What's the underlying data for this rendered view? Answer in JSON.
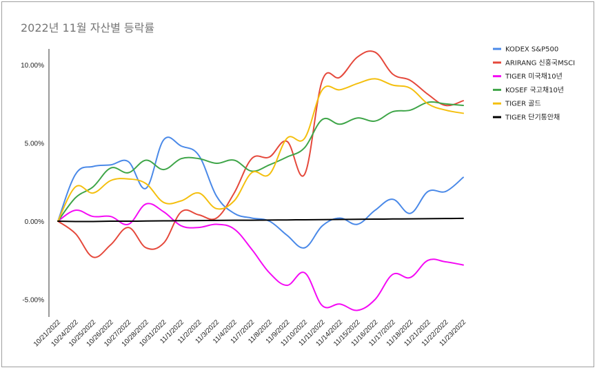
{
  "chart_data": {
    "type": "line",
    "title": "2022년 11월 자산별 등락률",
    "xlabel": "",
    "ylabel": "",
    "ylim": [
      -6.0,
      11.0
    ],
    "y_ticks": [
      "10.00%",
      "5.00%",
      "0.00%",
      "-5.00%"
    ],
    "y_tick_values": [
      10,
      5,
      0,
      -5
    ],
    "legend_position": "right",
    "grid": false,
    "categories": [
      "10/21/2022",
      "10/24/2022",
      "10/25/2022",
      "10/26/2022",
      "10/27/2022",
      "10/28/2022",
      "10/31/2022",
      "11/1/2022",
      "11/2/2022",
      "11/3/2022",
      "11/4/2022",
      "11/7/2022",
      "11/8/2022",
      "11/9/2022",
      "11/10/2022",
      "11/11/2022",
      "11/14/2022",
      "11/15/2022",
      "11/16/2022",
      "11/17/2022",
      "11/18/2022",
      "11/21/2022",
      "11/22/2022",
      "11/23/2022"
    ],
    "series": [
      {
        "name": "KODEX S&P500",
        "color": "#4a89e8",
        "values": [
          0.0,
          3.0,
          3.5,
          3.6,
          3.8,
          2.1,
          5.2,
          4.8,
          4.2,
          1.6,
          0.5,
          0.2,
          0.0,
          -0.9,
          -1.7,
          -0.3,
          0.2,
          -0.2,
          0.7,
          1.4,
          0.5,
          1.9,
          1.9,
          2.8
        ]
      },
      {
        "name": "ARIRANG 신흥국MSCI",
        "color": "#e5483b",
        "values": [
          0.0,
          -0.8,
          -2.3,
          -1.5,
          -0.4,
          -1.7,
          -1.4,
          0.6,
          0.4,
          0.2,
          1.8,
          4.0,
          4.1,
          5.1,
          3.0,
          9.0,
          9.2,
          10.5,
          10.8,
          9.4,
          9.0,
          8.1,
          7.4,
          7.7
        ]
      },
      {
        "name": "TIGER 미국채10년",
        "color": "#f40af4",
        "values": [
          0.0,
          0.7,
          0.3,
          0.3,
          -0.2,
          1.1,
          0.6,
          -0.3,
          -0.4,
          -0.2,
          -0.5,
          -1.8,
          -3.3,
          -4.1,
          -3.3,
          -5.4,
          -5.3,
          -5.7,
          -5.0,
          -3.4,
          -3.6,
          -2.5,
          -2.6,
          -2.8
        ]
      },
      {
        "name": "KOSEF 국고채10년",
        "color": "#3ea548",
        "values": [
          0.0,
          1.5,
          2.2,
          3.4,
          3.1,
          3.9,
          3.3,
          4.0,
          4.0,
          3.7,
          3.9,
          3.2,
          3.6,
          4.1,
          4.7,
          6.5,
          6.2,
          6.6,
          6.4,
          7.0,
          7.1,
          7.6,
          7.5,
          7.4
        ]
      },
      {
        "name": "TIGER 골드",
        "color": "#f4bf0e",
        "values": [
          0.0,
          2.2,
          1.8,
          2.6,
          2.7,
          2.4,
          1.2,
          1.3,
          1.8,
          0.8,
          1.3,
          3.1,
          3.0,
          5.3,
          5.3,
          8.4,
          8.4,
          8.8,
          9.1,
          8.7,
          8.5,
          7.5,
          7.1,
          6.9
        ]
      },
      {
        "name": "TIGER 단기통안채",
        "color": "#000000",
        "values": [
          0.0,
          -0.02,
          -0.02,
          0.0,
          0.0,
          0.01,
          0.02,
          0.03,
          0.04,
          0.05,
          0.06,
          0.06,
          0.07,
          0.08,
          0.09,
          0.1,
          0.11,
          0.12,
          0.13,
          0.14,
          0.15,
          0.16,
          0.17,
          0.18
        ]
      }
    ]
  }
}
